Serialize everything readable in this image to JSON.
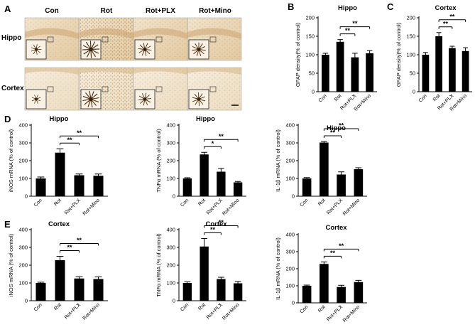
{
  "figure": {
    "panel_letters": [
      "A",
      "B",
      "C",
      "D",
      "E"
    ],
    "micrograph": {
      "columns": [
        "Con",
        "Rot",
        "Rot+PLX",
        "Rot+Mino"
      ],
      "rows": [
        "Hippo",
        "Cortex"
      ]
    }
  },
  "chart_data": [
    {
      "id": "B",
      "type": "bar",
      "title": "Hippo",
      "ylabel": "GFAP density(% of control)",
      "ylim": [
        0,
        200
      ],
      "yticks": [
        0,
        50,
        100,
        150,
        200
      ],
      "categories": [
        "Con",
        "Rot",
        "Rot+PLX",
        "Rot+Mino"
      ],
      "values": [
        100,
        135,
        93,
        104
      ],
      "errors": [
        4,
        6,
        11,
        7
      ],
      "significance": [
        {
          "from": 1,
          "to": 2,
          "label": "**"
        },
        {
          "from": 1,
          "to": 3,
          "label": "**"
        }
      ]
    },
    {
      "id": "C",
      "type": "bar",
      "title": "Cortex",
      "ylabel": "GFAP density(% of control)",
      "ylim": [
        0,
        200
      ],
      "yticks": [
        0,
        50,
        100,
        150,
        200
      ],
      "categories": [
        "Con",
        "Rot",
        "Rot+PLX",
        "Rot+Mino"
      ],
      "values": [
        100,
        150,
        118,
        110
      ],
      "errors": [
        6,
        10,
        5,
        9
      ],
      "significance": [
        {
          "from": 1,
          "to": 2,
          "label": "**"
        },
        {
          "from": 1,
          "to": 3,
          "label": "**"
        }
      ]
    },
    {
      "id": "D1",
      "type": "bar",
      "title": "Hippo",
      "ylabel": "iNOS mRNA (% of control)",
      "ylim": [
        0,
        400
      ],
      "yticks": [
        0,
        100,
        200,
        300,
        400
      ],
      "categories": [
        "Con",
        "Rot",
        "Rot+PLX",
        "Rot+Mino"
      ],
      "values": [
        100,
        245,
        118,
        115
      ],
      "errors": [
        8,
        22,
        7,
        10
      ],
      "significance": [
        {
          "from": 1,
          "to": 2,
          "label": "**"
        },
        {
          "from": 1,
          "to": 3,
          "label": "**"
        }
      ]
    },
    {
      "id": "D2",
      "type": "bar",
      "title": "Hippo",
      "ylabel": "TNFα mRNA (% of control)",
      "ylim": [
        0,
        400
      ],
      "yticks": [
        0,
        100,
        200,
        300,
        400
      ],
      "categories": [
        "Con",
        "Rot",
        "Rot+PLX",
        "Rot+Mino"
      ],
      "values": [
        100,
        235,
        138,
        78
      ],
      "errors": [
        4,
        12,
        18,
        5
      ],
      "significance": [
        {
          "from": 1,
          "to": 2,
          "label": "*"
        },
        {
          "from": 1,
          "to": 3,
          "label": "**"
        }
      ]
    },
    {
      "id": "D3",
      "type": "bar",
      "title": "Hippo",
      "ylabel": "IL-1β mRNA (% of control)",
      "ylim": [
        0,
        400
      ],
      "yticks": [
        0,
        100,
        200,
        300,
        400
      ],
      "categories": [
        "Con",
        "Rot",
        "Rot+PLX",
        "Rot+Mino"
      ],
      "values": [
        100,
        302,
        122,
        152
      ],
      "errors": [
        5,
        6,
        15,
        8
      ],
      "significance": [
        {
          "from": 1,
          "to": 2,
          "label": "**"
        },
        {
          "from": 1,
          "to": 3,
          "label": "**"
        }
      ]
    },
    {
      "id": "E1",
      "type": "bar",
      "title": "Cortex",
      "ylabel": "iNOS mRNA (% of control)",
      "ylim": [
        0,
        400
      ],
      "yticks": [
        0,
        100,
        200,
        300,
        400
      ],
      "categories": [
        "Con",
        "Rot",
        "Rot+PLX",
        "Rot+Mino"
      ],
      "values": [
        100,
        228,
        125,
        122
      ],
      "errors": [
        4,
        22,
        10,
        12
      ],
      "significance": [
        {
          "from": 1,
          "to": 2,
          "label": "**"
        },
        {
          "from": 1,
          "to": 3,
          "label": "**"
        }
      ]
    },
    {
      "id": "E2",
      "type": "bar",
      "title": "Cortex",
      "ylabel": "TNFα mRNA (% of control)",
      "ylim": [
        0,
        400
      ],
      "yticks": [
        0,
        100,
        200,
        300,
        400
      ],
      "categories": [
        "Con",
        "Rot",
        "Rot+PLX",
        "Rot+Mino"
      ],
      "values": [
        100,
        305,
        122,
        98
      ],
      "errors": [
        6,
        45,
        10,
        10
      ],
      "significance": [
        {
          "from": 1,
          "to": 2,
          "label": "**"
        },
        {
          "from": 1,
          "to": 3,
          "label": "**"
        }
      ]
    },
    {
      "id": "E3",
      "type": "bar",
      "title": "Cortex",
      "ylabel": "IL-1β mRNA (% of control)",
      "ylim": [
        0,
        400
      ],
      "yticks": [
        0,
        100,
        200,
        300,
        400
      ],
      "categories": [
        "Con",
        "Rot",
        "Rot+PLX",
        "Rot+Mino"
      ],
      "values": [
        100,
        228,
        93,
        122
      ],
      "errors": [
        4,
        12,
        10,
        10
      ],
      "significance": [
        {
          "from": 1,
          "to": 2,
          "label": "**"
        },
        {
          "from": 1,
          "to": 3,
          "label": "**"
        }
      ]
    }
  ]
}
